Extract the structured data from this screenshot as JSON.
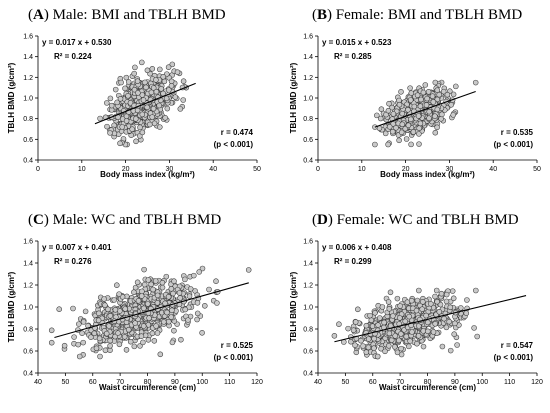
{
  "chart_data": [
    {
      "type": "scatter",
      "panel_letter": "A",
      "title_rest": "Male: BMI and TBLH BMD",
      "xlabel": "Body mass index (kg/m²)",
      "ylabel": "TBLH BMD (g/cm²)",
      "xlim": [
        0,
        50
      ],
      "ylim": [
        0.4,
        1.6
      ],
      "xticks": [
        0,
        10,
        20,
        30,
        40,
        50
      ],
      "yticks": [
        0.4,
        0.6,
        0.8,
        1.0,
        1.2,
        1.4,
        1.6
      ],
      "equation": "y = 0.017 x + 0.530",
      "r_squared": "R² = 0.224",
      "r_value": "r = 0.474",
      "p_value": "(p < 0.001)",
      "fit": {
        "slope": 0.017,
        "intercept": 0.53,
        "x_range": [
          13,
          36
        ]
      },
      "scatter": {
        "x_mean": 23.5,
        "x_sd": 3.4,
        "x_min": 13,
        "x_max": 36,
        "y_sd": 0.13,
        "y_min": 0.55,
        "y_max": 1.38,
        "n": 620
      }
    },
    {
      "type": "scatter",
      "panel_letter": "B",
      "title_rest": "Female: BMI and TBLH BMD",
      "xlabel": "Body mass index (kg/m²)",
      "ylabel": "TBLH BMD (g/cm²)",
      "xlim": [
        0,
        50
      ],
      "ylim": [
        0.4,
        1.6
      ],
      "xticks": [
        0,
        10,
        20,
        30,
        40,
        50
      ],
      "yticks": [
        0.4,
        0.6,
        0.8,
        1.0,
        1.2,
        1.4,
        1.6
      ],
      "equation": "y = 0.015 x + 0.523",
      "r_squared": "R² = 0.285",
      "r_value": "r = 0.535",
      "p_value": "(p < 0.001)",
      "fit": {
        "slope": 0.015,
        "intercept": 0.523,
        "x_range": [
          13,
          36
        ]
      },
      "scatter": {
        "x_mean": 22.5,
        "x_sd": 3.3,
        "x_min": 13,
        "x_max": 36,
        "y_sd": 0.095,
        "y_min": 0.55,
        "y_max": 1.15,
        "n": 620
      }
    },
    {
      "type": "scatter",
      "panel_letter": "C",
      "title_rest": "Male: WC and TBLH BMD",
      "xlabel": "Waist circumference (cm)",
      "ylabel": "TBLH BMD (g/cm²)",
      "xlim": [
        40,
        120
      ],
      "ylim": [
        0.4,
        1.6
      ],
      "xticks": [
        40,
        50,
        60,
        70,
        80,
        90,
        100,
        110,
        120
      ],
      "yticks": [
        0.4,
        0.6,
        0.8,
        1.0,
        1.2,
        1.4,
        1.6
      ],
      "equation": "y = 0.007 x + 0.401",
      "r_squared": "R² = 0.276",
      "r_value": "r = 0.525",
      "p_value": "(p < 0.001)",
      "fit": {
        "slope": 0.007,
        "intercept": 0.401,
        "x_range": [
          46,
          117
        ]
      },
      "scatter": {
        "x_mean": 76,
        "x_sd": 10,
        "x_min": 45,
        "x_max": 117,
        "y_sd": 0.12,
        "y_min": 0.55,
        "y_max": 1.35,
        "n": 720
      }
    },
    {
      "type": "scatter",
      "panel_letter": "D",
      "title_rest": "Female: WC and TBLH BMD",
      "xlabel": "Waist circumference (cm)",
      "ylabel": "TBLH BMD (g/cm²)",
      "xlim": [
        40,
        120
      ],
      "ylim": [
        0.4,
        1.6
      ],
      "xticks": [
        40,
        50,
        60,
        70,
        80,
        90,
        100,
        110,
        120
      ],
      "yticks": [
        0.4,
        0.6,
        0.8,
        1.0,
        1.2,
        1.4,
        1.6
      ],
      "equation": "y = 0.006 x + 0.408",
      "r_squared": "R² = 0.299",
      "r_value": "r = 0.547",
      "p_value": "(p < 0.001)",
      "fit": {
        "slope": 0.006,
        "intercept": 0.408,
        "x_range": [
          46,
          116
        ]
      },
      "scatter": {
        "x_mean": 71,
        "x_sd": 9,
        "x_min": 46,
        "x_max": 116,
        "y_sd": 0.1,
        "y_min": 0.55,
        "y_max": 1.15,
        "n": 640
      }
    }
  ]
}
